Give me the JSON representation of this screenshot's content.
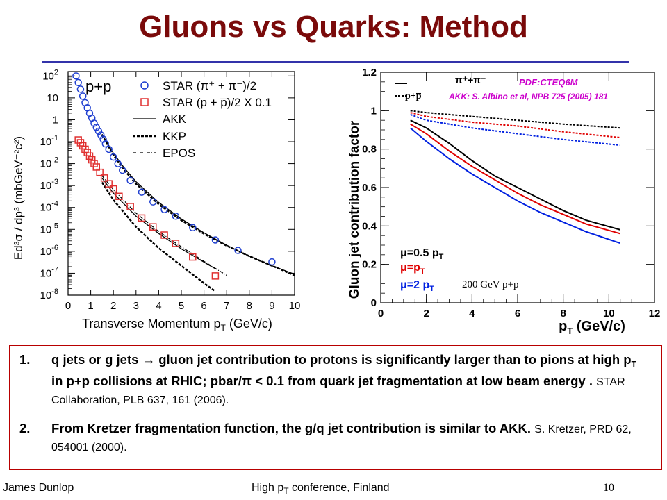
{
  "slide": {
    "title": "Gluons vs Quarks: Method",
    "footer_left": "James Dunlop",
    "footer_mid_pre": "High p",
    "footer_mid_sub": "T",
    "footer_mid_post": " conference, Finland",
    "page_number": "10"
  },
  "notes": [
    {
      "number": "1.",
      "bold_a": "q jets or g jets ",
      "arrow": "→",
      "bold_b": " gluon jet contribution to protons is significantly larger than to pions at high p",
      "sub": "T",
      "bold_c": " in p+p collisions at RHIC; pbar/π < 0.1 from quark jet fragmentation at low beam energy . ",
      "plain": "STAR Collaboration, PLB 637, 161 (2006)."
    },
    {
      "number": "2.",
      "bold": "From Kretzer fragmentation function, the g/q jet contribution is similar to AKK. ",
      "plain": "S. Kretzer, PRD 62, 054001 (2000)."
    }
  ],
  "chart_data": [
    {
      "type": "scatter",
      "panel_label": "p+p",
      "xlabel_pre": "Transverse Momentum p",
      "xlabel_sub": "T",
      "xlabel_post": " (GeV/c)",
      "ylabel": "Ed³σ / dp³ (mbGeV⁻²c²)",
      "xlim": [
        0,
        10
      ],
      "ylim_log10": [
        -8,
        2.2
      ],
      "x_ticks": [
        "0",
        "1",
        "2",
        "3",
        "4",
        "5",
        "6",
        "7",
        "8",
        "9",
        "10"
      ],
      "y_ticks": [
        {
          "exp": 2,
          "label": "10",
          "sup": "2"
        },
        {
          "exp": 1,
          "label": "10",
          "sup": ""
        },
        {
          "exp": 0,
          "label": "1",
          "sup": ""
        },
        {
          "exp": -1,
          "label": "10",
          "sup": "-1"
        },
        {
          "exp": -2,
          "label": "10",
          "sup": "-2"
        },
        {
          "exp": -3,
          "label": "10",
          "sup": "-3"
        },
        {
          "exp": -4,
          "label": "10",
          "sup": "-4"
        },
        {
          "exp": -5,
          "label": "10",
          "sup": "-5"
        },
        {
          "exp": -6,
          "label": "10",
          "sup": "-6"
        },
        {
          "exp": -7,
          "label": "10",
          "sup": "-7"
        },
        {
          "exp": -8,
          "label": "10",
          "sup": "-8"
        }
      ],
      "legend": [
        "STAR (π⁺ + π⁻)/2",
        "STAR (p + p̅)/2 X 0.1",
        "AKK",
        "KKP",
        "EPOS"
      ],
      "series": [
        {
          "name": "STAR (π⁺ + π⁻)/2",
          "marker": "circle",
          "color": "#1f3fd0",
          "x": [
            0.35,
            0.45,
            0.55,
            0.65,
            0.75,
            0.85,
            0.95,
            1.05,
            1.15,
            1.25,
            1.35,
            1.45,
            1.55,
            1.65,
            1.8,
            2.0,
            2.2,
            2.4,
            2.75,
            3.25,
            3.75,
            4.25,
            4.75,
            5.5,
            6.5,
            7.5,
            9.0
          ],
          "y": [
            100,
            50,
            25,
            12,
            6,
            3.5,
            2,
            1.2,
            0.7,
            0.45,
            0.3,
            0.2,
            0.13,
            0.08,
            0.045,
            0.02,
            0.01,
            0.005,
            0.0017,
            0.0005,
            0.00018,
            8e-05,
            4e-05,
            1.2e-05,
            3.3e-06,
            1.1e-06,
            3.3e-07
          ]
        },
        {
          "name": "STAR (p + p̅)/2 X 0.1",
          "marker": "square",
          "color": "#e03030",
          "x": [
            0.45,
            0.55,
            0.65,
            0.75,
            0.85,
            0.95,
            1.05,
            1.15,
            1.25,
            1.4,
            1.6,
            1.8,
            2.0,
            2.25,
            2.75,
            3.25,
            3.75,
            4.25,
            4.75,
            5.5,
            6.5
          ],
          "y": [
            0.12,
            0.09,
            0.065,
            0.045,
            0.032,
            0.022,
            0.015,
            0.01,
            0.007,
            0.004,
            0.0022,
            0.0012,
            0.0007,
            0.00032,
            0.00011,
            3.3e-05,
            1.3e-05,
            5.5e-06,
            2.3e-06,
            5.5e-07,
            7.5e-08
          ]
        },
        {
          "name": "AKK",
          "line": "solid",
          "color": "#000000",
          "x": [
            1.5,
            2,
            2.5,
            3,
            4,
            5,
            6,
            7,
            8,
            9,
            10
          ],
          "y": [
            0.22,
            0.03,
            0.006,
            0.0015,
            0.00017,
            3e-05,
            7e-06,
            1.9e-06,
            6e-07,
            2.2e-07,
            9e-08
          ]
        },
        {
          "name": "KKP",
          "line": "dashed",
          "color": "#000000",
          "x": [
            1.5,
            2,
            2.5,
            3,
            4,
            5,
            6,
            7,
            8,
            9,
            10
          ],
          "y": [
            0.2,
            0.025,
            0.0048,
            0.0012,
            0.00014,
            2.6e-05,
            6.3e-06,
            1.8e-06,
            6e-07,
            2.2e-07,
            8e-08
          ]
        },
        {
          "name": "AKK p+p̅",
          "line": "solid",
          "color": "#000000",
          "x": [
            1.5,
            2,
            3,
            4,
            5,
            6,
            6.5
          ],
          "y": [
            0.0022,
            0.00045,
            4e-05,
            6.5e-06,
            1.3e-06,
            3.2e-07,
            1.6e-07
          ]
        },
        {
          "name": "KKP p+p̅",
          "line": "dashed",
          "color": "#000000",
          "x": [
            1.5,
            2,
            3,
            4,
            5,
            6,
            6.5
          ],
          "y": [
            0.0014,
            0.00022,
            1.3e-05,
            1.4e-06,
            2.2e-07,
            3.5e-08,
            1.5e-08
          ]
        },
        {
          "name": "EPOS",
          "line": "dashdot",
          "color": "#000000",
          "x": [
            1.5,
            2,
            3,
            4,
            5,
            6,
            7
          ],
          "y": [
            0.0028,
            0.00065,
            5.5e-05,
            8e-06,
            1.6e-06,
            3.5e-07,
            8e-08
          ]
        }
      ]
    },
    {
      "type": "line",
      "ylabel": "Gluon jet contribution factor",
      "xlabel_pre": "p",
      "xlabel_sub": "T",
      "xlabel_post": " (GeV/c)",
      "xlim": [
        0,
        12
      ],
      "ylim": [
        0,
        1.2
      ],
      "x_ticks": [
        0,
        2,
        4,
        6,
        8,
        10,
        12
      ],
      "y_ticks": [
        0,
        0.2,
        0.4,
        0.6,
        0.8,
        1,
        1.2
      ],
      "y_tick_labels": [
        "0",
        "0.2",
        "0.4",
        "0.6",
        "0.8",
        "1",
        "1.2"
      ],
      "annotations": {
        "pdf": "PDF:CTEQ6M",
        "akk": "AKK: S. Albino et al, NPB 725 (2005) 181",
        "energy": "200 GeV p+p",
        "legend_pion": "π⁺+π⁻",
        "legend_proton": "p+p̅",
        "mu_half": "μ=0.5 p",
        "mu_one": "μ=p",
        "mu_two": "μ=2 p",
        "mu_sub": "T"
      },
      "colors": {
        "mu_half": "#000000",
        "mu_one": "#e00000",
        "mu_two": "#0020e0"
      },
      "series": [
        {
          "name": "π⁺+π⁻",
          "scale": "μ=0.5 p",
          "style": "solid",
          "color": "#000000",
          "x": [
            1.3,
            2,
            3,
            4,
            5,
            6,
            7,
            8,
            9,
            10.5
          ],
          "y": [
            0.95,
            0.91,
            0.83,
            0.74,
            0.66,
            0.6,
            0.54,
            0.48,
            0.43,
            0.38
          ]
        },
        {
          "name": "π⁺+π⁻",
          "scale": "μ=p",
          "style": "solid",
          "color": "#e00000",
          "x": [
            1.3,
            2,
            3,
            4,
            5,
            6,
            7,
            8,
            9,
            10.5
          ],
          "y": [
            0.93,
            0.88,
            0.79,
            0.71,
            0.64,
            0.57,
            0.51,
            0.46,
            0.41,
            0.36
          ]
        },
        {
          "name": "π⁺+π⁻",
          "scale": "μ=2 p",
          "style": "solid",
          "color": "#0020e0",
          "x": [
            1.3,
            2,
            3,
            4,
            5,
            6,
            7,
            8,
            9,
            10.5
          ],
          "y": [
            0.91,
            0.84,
            0.75,
            0.67,
            0.6,
            0.53,
            0.47,
            0.42,
            0.37,
            0.31
          ]
        },
        {
          "name": "p+p̅",
          "scale": "μ=0.5 p",
          "style": "dashed",
          "color": "#000000",
          "x": [
            1.3,
            2,
            4,
            6,
            8,
            10.5
          ],
          "y": [
            1.0,
            0.99,
            0.97,
            0.95,
            0.93,
            0.91
          ]
        },
        {
          "name": "p+p̅",
          "scale": "μ=p",
          "style": "dashed",
          "color": "#e00000",
          "x": [
            1.3,
            2,
            4,
            6,
            8,
            10.5
          ],
          "y": [
            0.99,
            0.97,
            0.94,
            0.92,
            0.89,
            0.86
          ]
        },
        {
          "name": "p+p̅",
          "scale": "μ=2 p",
          "style": "dashed",
          "color": "#0020e0",
          "x": [
            1.3,
            2,
            4,
            6,
            8,
            10.5
          ],
          "y": [
            0.98,
            0.95,
            0.91,
            0.88,
            0.85,
            0.82
          ]
        }
      ]
    }
  ]
}
